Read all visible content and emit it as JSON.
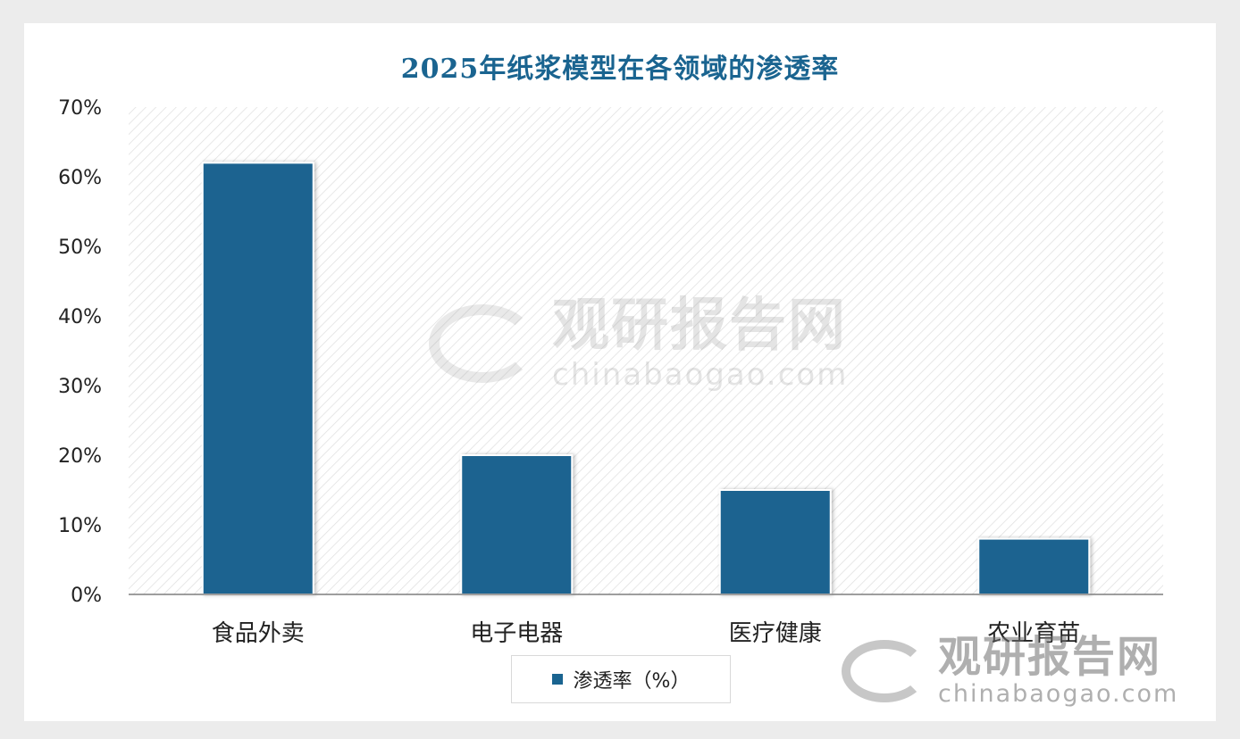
{
  "chart_data": {
    "type": "bar",
    "title": "2025年纸浆模型在各领域的渗透率",
    "categories": [
      "食品外卖",
      "电子电器",
      "医疗健康",
      "农业育苗"
    ],
    "series": [
      {
        "name": "渗透率（%）",
        "values": [
          62,
          20,
          15,
          8
        ]
      }
    ],
    "yticks": [
      "0%",
      "10%",
      "20%",
      "30%",
      "40%",
      "50%",
      "60%",
      "70%"
    ],
    "ylim": [
      0,
      70
    ],
    "xlabel": "",
    "ylabel": "",
    "grid": false,
    "legend_position": "bottom",
    "colors": {
      "bar": "#1a6490",
      "title": "#1a6490",
      "hatch": "#dcdcdc"
    }
  },
  "watermark": {
    "brand_cn": "观研报告网",
    "brand_en": "chinabaogao.com",
    "logo_icon": "swirl-logo-icon"
  }
}
